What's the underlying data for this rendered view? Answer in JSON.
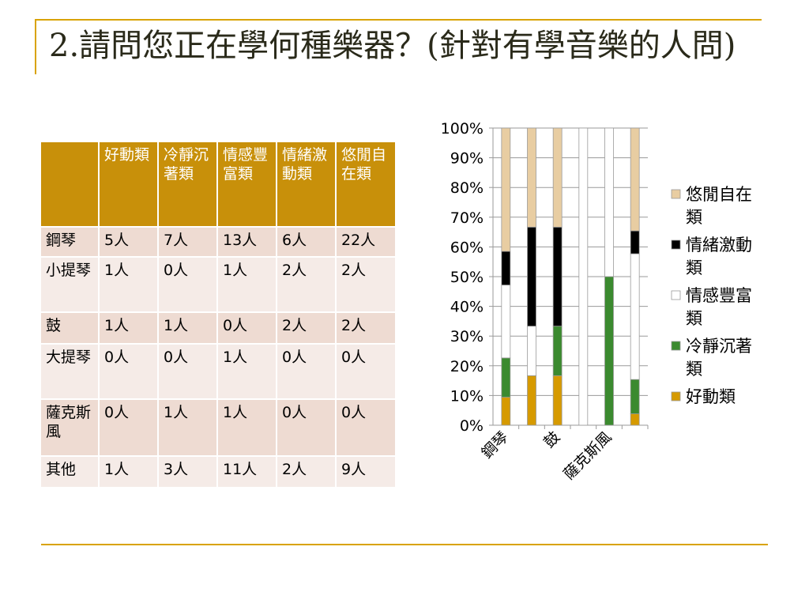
{
  "title": "2.請問您正在學何種樂器？(針對有學音樂的人問)",
  "colors": {
    "accent": "#d9a300",
    "header_bg": "#c8900a",
    "row_odd": "#eedbd2",
    "row_even": "#f5ebe7",
    "title": "#2a2a1a"
  },
  "table": {
    "columns": [
      "",
      "好動類",
      "冷靜沉著類",
      "情感豐富類",
      "情緒激動類",
      "悠閒自在類"
    ],
    "rows": [
      {
        "label": "鋼琴",
        "cells": [
          "5人",
          "7人",
          "13人",
          "6人",
          "22人"
        ]
      },
      {
        "label": "小提琴",
        "cells": [
          "1人",
          "0人",
          "1人",
          "2人",
          "2人"
        ]
      },
      {
        "label": "鼓",
        "cells": [
          "1人",
          "1人",
          "0人",
          "2人",
          "2人"
        ]
      },
      {
        "label": "大提琴",
        "cells": [
          "0人",
          "0人",
          "1人",
          "0人",
          "0人"
        ]
      },
      {
        "label": "薩克斯風",
        "cells": [
          "0人",
          "1人",
          "1人",
          "0人",
          "0人"
        ]
      },
      {
        "label": "其他",
        "cells": [
          "1人",
          "3人",
          "11人",
          "2人",
          "9人"
        ]
      }
    ]
  },
  "chart_data": {
    "type": "bar",
    "stacked": "percent",
    "categories": [
      "鋼琴",
      "小提琴",
      "鼓",
      "大提琴",
      "薩克斯風",
      "其他"
    ],
    "x_tick_labels_shown": [
      "鋼琴",
      "鼓",
      "薩克斯風"
    ],
    "y_ticks": [
      "0%",
      "10%",
      "20%",
      "30%",
      "40%",
      "50%",
      "60%",
      "70%",
      "80%",
      "90%",
      "100%"
    ],
    "ylim": [
      0,
      100
    ],
    "grid": true,
    "legend_position": "right",
    "series": [
      {
        "name": "好動類",
        "color": "#d69a00",
        "values": [
          5,
          1,
          1,
          0,
          0,
          1
        ]
      },
      {
        "name": "冷靜沉著類",
        "color": "#3b8a2f",
        "values": [
          7,
          0,
          1,
          0,
          1,
          3
        ]
      },
      {
        "name": "情感豐富類",
        "color": "#ffffff",
        "values": [
          13,
          1,
          0,
          1,
          1,
          11
        ]
      },
      {
        "name": "情緒激動類",
        "color": "#000000",
        "values": [
          6,
          2,
          2,
          0,
          0,
          2
        ]
      },
      {
        "name": "悠閒自在類",
        "color": "#e8cda2",
        "values": [
          22,
          2,
          2,
          0,
          0,
          9
        ]
      }
    ],
    "legend": [
      "悠閒自在類",
      "情緒激動類",
      "情感豐富類",
      "冷靜沉著類",
      "好動類"
    ]
  }
}
